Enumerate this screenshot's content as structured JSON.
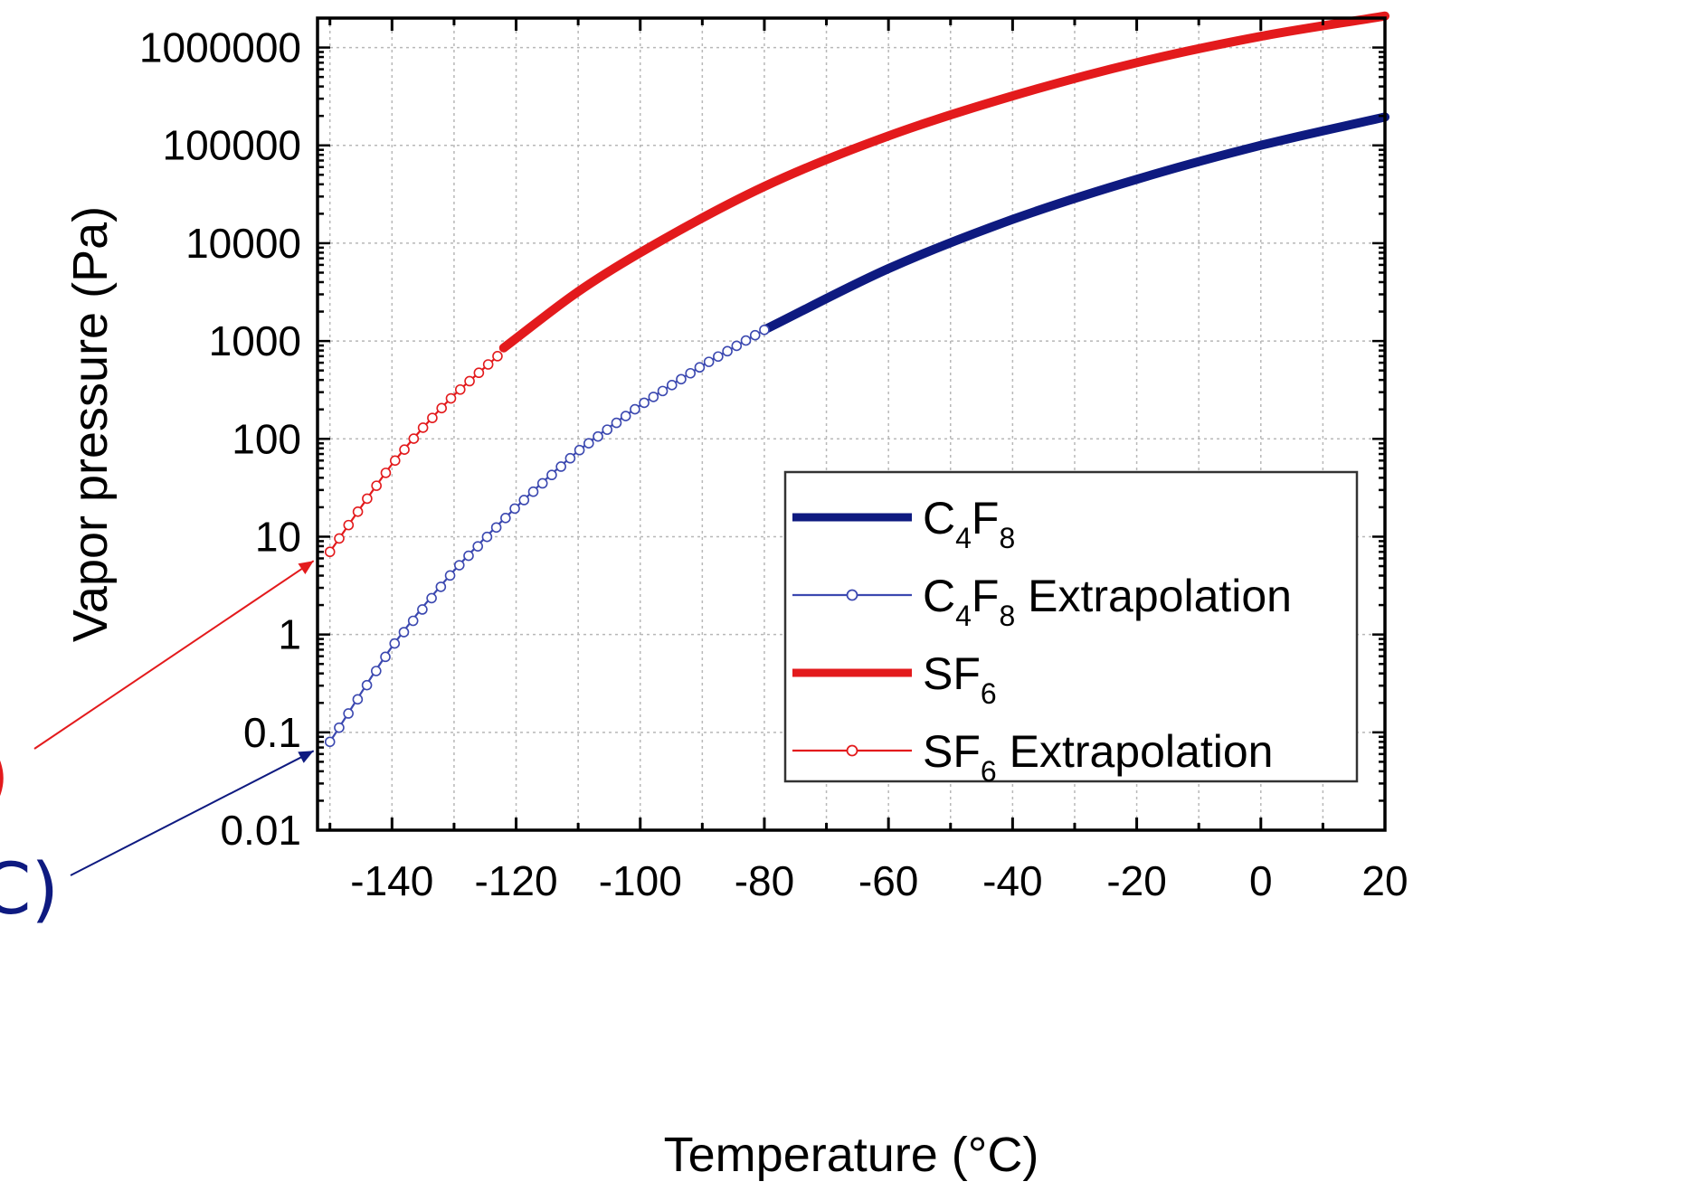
{
  "chart_data": {
    "type": "line",
    "title": "",
    "xlabel": "Temperature (°C)",
    "ylabel": "Vapor pressure (Pa)",
    "xlim": [
      -152,
      20
    ],
    "ylim": [
      0.01,
      2000000
    ],
    "yscale": "log",
    "x_ticks": [
      -140,
      -120,
      -100,
      -80,
      -60,
      -40,
      -20,
      0,
      20
    ],
    "x_tick_labels": [
      "-140",
      "-120",
      "-100",
      "-80",
      "-60",
      "-40",
      "-20",
      "0",
      "20"
    ],
    "y_ticks": [
      0.01,
      0.1,
      1,
      10,
      100,
      1000,
      10000,
      100000,
      1000000
    ],
    "y_tick_labels": [
      "0.01",
      "0.1",
      "1",
      "10",
      "100",
      "1000",
      "10000",
      "100000",
      "1000000"
    ],
    "grid": true,
    "legend_position": "bottom-right",
    "colors": {
      "c4f8": "#0e1a80",
      "sf6": "#e31a1c",
      "axis": "#000000",
      "grid": "#b8b8b8"
    },
    "series": [
      {
        "key": "c4f8",
        "name": "C4F8",
        "legend": {
          "base": "C",
          "sub1": "4",
          "mid": "F",
          "sub2": "8",
          "suffix": ""
        },
        "style": "thick",
        "color": "#0e1a80",
        "x": [
          -80,
          -60,
          -40,
          -20,
          0,
          20
        ],
        "y": [
          1300,
          5500,
          17500,
          45000,
          100000,
          195000
        ]
      },
      {
        "key": "c4f8_ext",
        "name": "C4F8 Extrapolation",
        "legend": {
          "base": "C",
          "sub1": "4",
          "mid": "F",
          "sub2": "8",
          "suffix": " Extrapolation"
        },
        "style": "thin-markers",
        "color": "#3b48b0",
        "x": [
          -150,
          -140,
          -130,
          -120,
          -110,
          -100,
          -90,
          -80
        ],
        "y": [
          0.08,
          0.75,
          4.5,
          20,
          75,
          220,
          560,
          1300
        ]
      },
      {
        "key": "sf6",
        "name": "SF6",
        "legend": {
          "base": "SF",
          "sub1": "6",
          "mid": "",
          "sub2": "",
          "suffix": ""
        },
        "style": "thick",
        "color": "#e31a1c",
        "x": [
          -122,
          -110,
          -100,
          -80,
          -60,
          -40,
          -20,
          0,
          20
        ],
        "y": [
          850,
          3200,
          8000,
          38000,
          125000,
          320000,
          700000,
          1300000,
          2100000
        ]
      },
      {
        "key": "sf6_ext",
        "name": "SF6 Extrapolation",
        "legend": {
          "base": "SF",
          "sub1": "6",
          "mid": "",
          "sub2": "",
          "suffix": " Extrapolation"
        },
        "style": "thin-markers",
        "color": "#e31a1c",
        "x": [
          -150,
          -145,
          -140,
          -135,
          -130,
          -125,
          -123
        ],
        "y": [
          7,
          20,
          55,
          130,
          280,
          540,
          700
        ]
      }
    ],
    "annotations": [
      {
        "text": ")",
        "color": "#e31a1c",
        "target": {
          "x": -150,
          "y": 7
        }
      },
      {
        "text": "C)",
        "color": "#0e1a80",
        "target": {
          "x": -150,
          "y": 0.08
        }
      }
    ]
  }
}
